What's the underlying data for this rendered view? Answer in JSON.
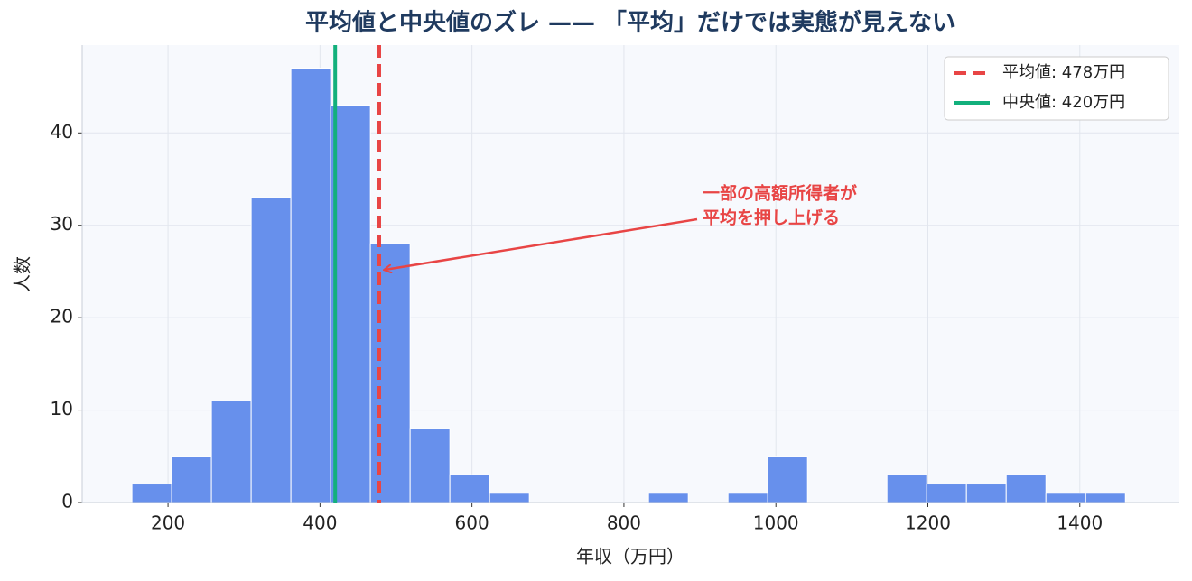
{
  "chart_data": {
    "type": "histogram",
    "title": "平均値と中央値のズレ —— 「平均」だけでは実態が見えない",
    "x_label": "年収（万円）",
    "y_label": "人数",
    "bins": [
      152.5,
      204.8,
      257.1,
      309.4,
      361.7,
      414.0,
      466.3,
      518.6,
      570.9,
      623.2,
      675.5,
      727.8,
      780.1,
      832.4,
      884.7,
      937.0,
      989.3,
      1041.6,
      1093.9,
      1146.2,
      1198.5,
      1250.8,
      1303.1,
      1355.4,
      1407.7,
      1460.0
    ],
    "counts": [
      2,
      5,
      11,
      33,
      47,
      43,
      28,
      8,
      3,
      1,
      0,
      0,
      0,
      1,
      0,
      1,
      5,
      0,
      0,
      3,
      2,
      2,
      3,
      1,
      1
    ],
    "color": "#6790ec",
    "xlim": [
      87,
      1531
    ],
    "ylim": [
      0,
      49.5
    ],
    "xticks": [
      200,
      400,
      600,
      800,
      1000,
      1200,
      1400
    ],
    "yticks": [
      0,
      10,
      20,
      30,
      40
    ],
    "grid": true,
    "reference_lines": [
      {
        "name": "平均値: 478万円",
        "value": 478,
        "color": "#e84545",
        "style": "dashed"
      },
      {
        "name": "中央値: 420万円",
        "value": 420,
        "color": "#12b07c",
        "style": "solid"
      }
    ],
    "legend": "upper right",
    "annotation": {
      "lines": [
        "一部の高額所得者が",
        "平均を押し上げる"
      ],
      "color": "#e84545"
    }
  }
}
